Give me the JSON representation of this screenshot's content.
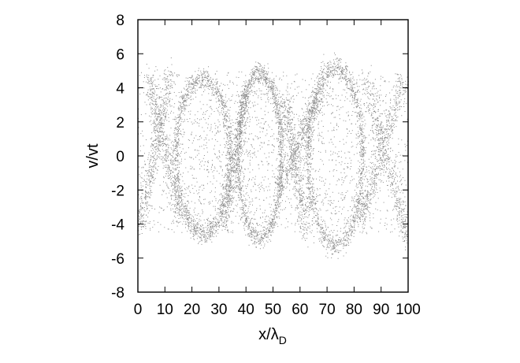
{
  "chart_data": {
    "type": "scatter",
    "title": "",
    "xlabel": "x/λ",
    "xlabel_subscript": "D",
    "ylabel": "v/vt",
    "xlim": [
      0,
      100
    ],
    "ylim": [
      -8,
      8
    ],
    "xticks": [
      0,
      10,
      20,
      30,
      40,
      50,
      60,
      70,
      80,
      90,
      100
    ],
    "yticks": [
      -8,
      -6,
      -4,
      -2,
      0,
      2,
      4,
      6,
      8
    ],
    "grid": false,
    "legend": "none",
    "point_color": "#8a8a8a",
    "series": [
      {
        "values_description": "phase-space particle cloud: three vortex (hole) structures",
        "vortices": [
          {
            "center_x": 24,
            "half_width_x": 10,
            "v_amplitude": 4.5
          },
          {
            "center_x": 45,
            "half_width_x": 8,
            "v_amplitude": 4.8
          },
          {
            "center_x": 73,
            "half_width_x": 10,
            "v_amplitude": 5.2
          }
        ],
        "background_v_range": [
          -4.5,
          5.0
        ]
      }
    ]
  }
}
